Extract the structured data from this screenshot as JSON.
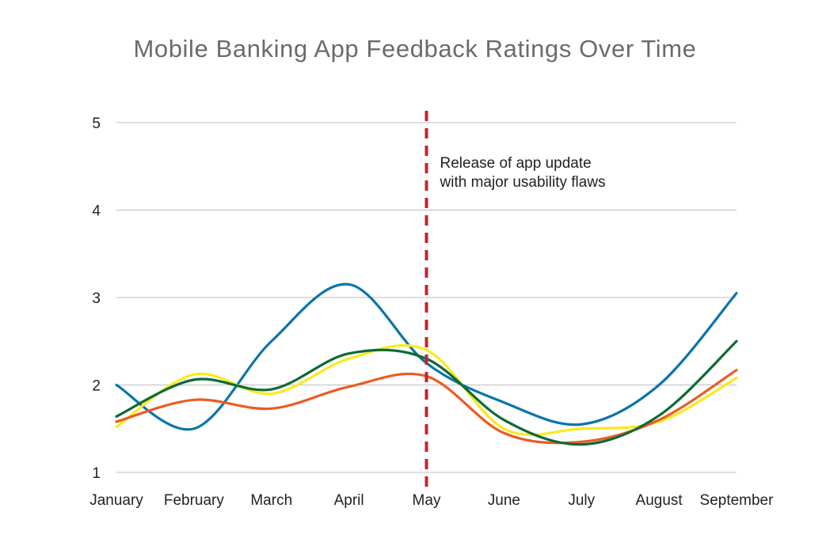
{
  "chart_data": {
    "type": "line",
    "title": "Mobile Banking App Feedback Ratings Over Time",
    "xlabel": "",
    "ylabel": "",
    "categories": [
      "January",
      "February",
      "March",
      "April",
      "May",
      "June",
      "July",
      "August",
      "September"
    ],
    "ylim": [
      1,
      5
    ],
    "yticks": [
      1,
      2,
      3,
      4,
      5
    ],
    "grid": true,
    "series": [
      {
        "color": "#0b75aa",
        "values": [
          2.0,
          1.5,
          2.5,
          3.15,
          2.25,
          1.8,
          1.55,
          2.0,
          3.05
        ]
      },
      {
        "color": "#fbe91f",
        "values": [
          1.52,
          2.12,
          1.9,
          2.3,
          2.4,
          1.5,
          1.5,
          1.58,
          2.08
        ]
      },
      {
        "color": "#ec5b24",
        "values": [
          1.58,
          1.83,
          1.73,
          1.98,
          2.1,
          1.45,
          1.35,
          1.6,
          2.17
        ]
      },
      {
        "color": "#0d6a35",
        "values": [
          1.64,
          2.06,
          1.95,
          2.36,
          2.3,
          1.6,
          1.32,
          1.65,
          2.5
        ]
      }
    ],
    "annotation": {
      "category": "May",
      "color": "#c8232c",
      "lines": [
        "Release of app update",
        "with major usability flaws"
      ]
    }
  }
}
